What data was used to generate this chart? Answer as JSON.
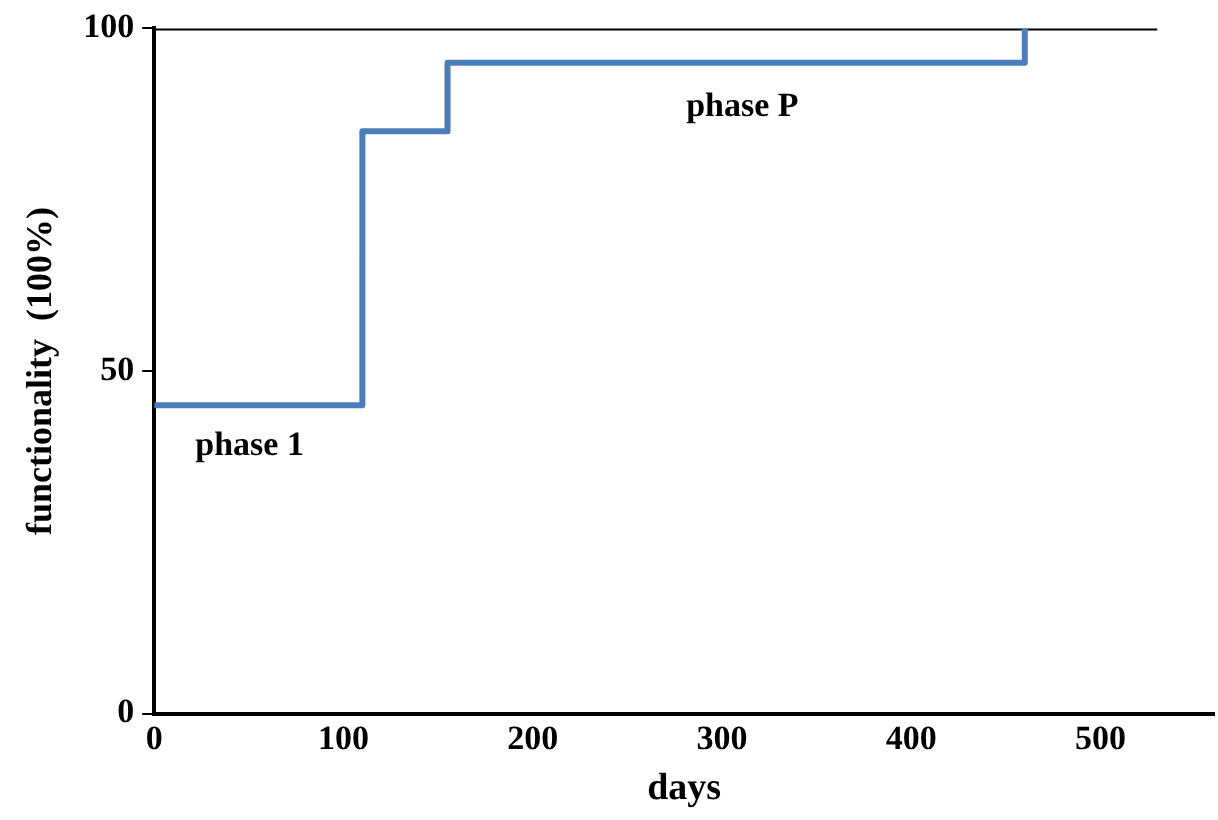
{
  "chart_data": {
    "type": "step",
    "xlabel": "days",
    "ylabel": "functionality  (100%)",
    "series": [
      {
        "x": [
          0,
          110,
          155,
          460
        ],
        "values": [
          45,
          85,
          95,
          100
        ],
        "color": "#4a7ebb"
      },
      {
        "type": "line",
        "x": [
          0,
          530
        ],
        "values": [
          100,
          100
        ],
        "color": "#000000"
      }
    ],
    "xlim": [
      0,
      560
    ],
    "xticks": [
      0,
      100,
      200,
      300,
      400,
      500
    ],
    "ylim": [
      0,
      100
    ],
    "yticks": [
      0,
      50,
      100
    ],
    "grid": false,
    "legend": false,
    "marker": "none",
    "line_style": "solid",
    "annotations": [
      "phase 1",
      "phase P"
    ]
  }
}
